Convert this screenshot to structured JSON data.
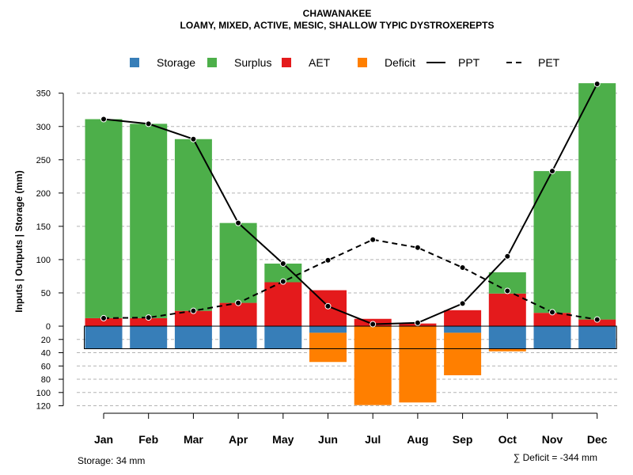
{
  "chart_data": {
    "type": "bar",
    "title": "CHAWANAKEE",
    "subtitle": "LOAMY, MIXED, ACTIVE, MESIC, SHALLOW TYPIC DYSTROXEREPTS",
    "ylabel": "Inputs | Outputs | Storage    (mm)",
    "categories": [
      "Jan",
      "Feb",
      "Mar",
      "Apr",
      "May",
      "Jun",
      "Jul",
      "Aug",
      "Sep",
      "Oct",
      "Nov",
      "Dec"
    ],
    "ylim_upper": [
      0,
      370
    ],
    "ylim_lower": [
      0,
      120
    ],
    "yticks_upper": [
      0,
      50,
      100,
      150,
      200,
      250,
      300,
      350
    ],
    "yticks_lower": [
      20,
      40,
      60,
      80,
      100,
      120
    ],
    "legend": [
      {
        "label": "Storage",
        "kind": "box",
        "color": "#377EB8"
      },
      {
        "label": "Surplus",
        "kind": "box",
        "color": "#4DAF4A"
      },
      {
        "label": "AET",
        "kind": "box",
        "color": "#E41A1C"
      },
      {
        "label": "Deficit",
        "kind": "box",
        "color": "#FF7F00"
      },
      {
        "label": "PPT",
        "kind": "solid"
      },
      {
        "label": "PET",
        "kind": "dashed"
      }
    ],
    "series": [
      {
        "name": "AET",
        "values": [
          12,
          12,
          23,
          35,
          66,
          54,
          11,
          4,
          24,
          49,
          20,
          10
        ]
      },
      {
        "name": "Surplus",
        "values": [
          299,
          292,
          258,
          120,
          28,
          0,
          0,
          0,
          0,
          32,
          213,
          355
        ]
      },
      {
        "name": "Storage",
        "values": [
          34,
          34,
          34,
          34,
          34,
          10,
          0,
          0,
          10,
          34,
          34,
          34
        ]
      },
      {
        "name": "Deficit",
        "values": [
          0,
          0,
          0,
          0,
          0,
          44,
          119,
          115,
          64,
          4,
          0,
          0
        ]
      },
      {
        "name": "PPT",
        "values": [
          311,
          304,
          281,
          155,
          94,
          30,
          3,
          5,
          34,
          105,
          233,
          364
        ]
      },
      {
        "name": "PET",
        "values": [
          12,
          13,
          23,
          35,
          67,
          99,
          130,
          118,
          88,
          53,
          21,
          10
        ]
      }
    ],
    "storage_total_line": 34,
    "footer_left": "Storage: 34 mm",
    "footer_right": "∑ Deficit = -344 mm"
  },
  "colors": {
    "storage": "#377EB8",
    "surplus": "#4DAF4A",
    "aet": "#E41A1C",
    "deficit": "#FF7F00",
    "grid": "#b3b3b3"
  }
}
